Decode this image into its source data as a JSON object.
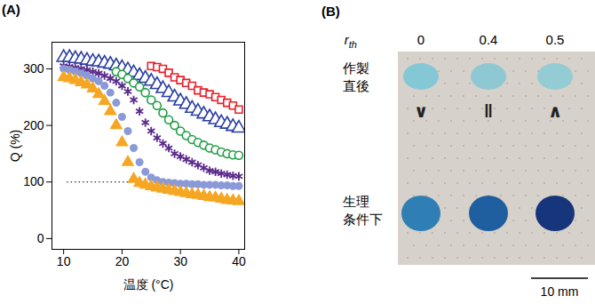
{
  "chart_data": {
    "type": "scatter",
    "title": "(A)",
    "x_label": "温度 (°C)",
    "y_label": "Q (%)",
    "xlim": [
      8,
      41
    ],
    "xticks": [
      10,
      20,
      30,
      40
    ],
    "ylim": [
      -19,
      347
    ],
    "yticks": [
      0,
      100,
      200,
      300
    ],
    "x": [
      10,
      11,
      12,
      13,
      14,
      15,
      16,
      17,
      18,
      19,
      20,
      21,
      22,
      23,
      24,
      25,
      26,
      27,
      28,
      29,
      30,
      31,
      32,
      33,
      34,
      35,
      36,
      37,
      38,
      39,
      40
    ],
    "series": [
      {
        "color": "#e8202a",
        "marker": "open_square",
        "values": [
          null,
          null,
          null,
          null,
          null,
          null,
          null,
          null,
          null,
          null,
          null,
          null,
          null,
          null,
          null,
          305,
          303,
          300,
          293,
          285,
          280,
          275,
          270,
          262,
          258,
          255,
          250,
          245,
          240,
          235,
          228
        ]
      },
      {
        "color": "#2a3ea0",
        "marker": "open_triangle",
        "values": [
          320,
          320,
          318,
          317,
          315,
          313,
          312,
          310,
          308,
          305,
          302,
          298,
          293,
          288,
          283,
          278,
          272,
          265,
          258,
          250,
          243,
          237,
          230,
          225,
          220,
          215,
          210,
          205,
          202,
          198,
          195
        ]
      },
      {
        "color": "#1f9e45",
        "marker": "open_circle",
        "values": [
          null,
          null,
          null,
          null,
          null,
          null,
          null,
          null,
          null,
          295,
          290,
          283,
          275,
          268,
          258,
          245,
          235,
          222,
          210,
          200,
          190,
          182,
          175,
          170,
          165,
          160,
          157,
          153,
          150,
          148,
          147
        ]
      },
      {
        "color": "#5a2a8a",
        "marker": "asterisk",
        "values": [
          305,
          304,
          302,
          300,
          298,
          295,
          292,
          288,
          283,
          278,
          270,
          260,
          245,
          225,
          205,
          190,
          178,
          168,
          160,
          150,
          145,
          140,
          135,
          130,
          125,
          120,
          118,
          115,
          113,
          111,
          110
        ]
      },
      {
        "color": "#8a9ad8",
        "marker": "filled_circle",
        "values": [
          300,
          298,
          295,
          292,
          288,
          283,
          278,
          270,
          258,
          240,
          215,
          190,
          160,
          135,
          118,
          108,
          103,
          100,
          99,
          98,
          97,
          97,
          96,
          96,
          95,
          95,
          95,
          94,
          94,
          93,
          93
        ]
      },
      {
        "color": "#f5a623",
        "marker": "filled_triangle",
        "values": [
          285,
          283,
          280,
          276,
          272,
          265,
          255,
          243,
          225,
          200,
          170,
          135,
          105,
          98,
          95,
          92,
          90,
          88,
          86,
          84,
          82,
          80,
          78,
          77,
          75,
          73,
          72,
          70,
          68,
          67,
          66
        ]
      }
    ],
    "reference_line": {
      "y": 100,
      "x": [
        10.6,
        23.5
      ],
      "line_style": "dotted"
    }
  },
  "panel_b": {
    "label": "(B)",
    "column_header": {
      "symbol": "r",
      "subscript": "th"
    },
    "columns": [
      "0",
      "0.4",
      "0.5"
    ],
    "rows": [
      [
        "作製",
        "直後"
      ],
      [
        "生理",
        "条件下"
      ]
    ],
    "relations": [
      "∨",
      "‖",
      "∧"
    ],
    "scale_bar": "10 mm"
  }
}
